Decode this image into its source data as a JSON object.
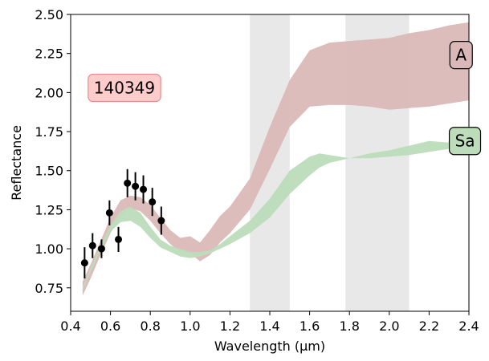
{
  "chart_data": {
    "type": "scatter",
    "title": "",
    "xlabel": "Wavelength (µm)",
    "ylabel": "Reflectance",
    "xlim": [
      0.4,
      2.4
    ],
    "ylim": [
      0.6,
      2.5
    ],
    "xticks": [
      "0.4",
      "0.6",
      "0.8",
      "1.0",
      "1.2",
      "1.4",
      "1.6",
      "1.8",
      "2.0",
      "2.2",
      "2.4"
    ],
    "yticks": [
      "0.75",
      "1.00",
      "1.25",
      "1.50",
      "1.75",
      "2.00",
      "2.25",
      "2.50"
    ],
    "grid": false,
    "shaded_regions": [
      {
        "x0": 1.3,
        "x1": 1.5,
        "color": "#e8e8e8"
      },
      {
        "x0": 1.78,
        "x1": 2.1,
        "color": "#e8e8e8"
      }
    ],
    "series": [
      {
        "name": "A",
        "kind": "band",
        "color": "#dbb8b8",
        "x": [
          0.46,
          0.5,
          0.55,
          0.6,
          0.65,
          0.7,
          0.75,
          0.8,
          0.85,
          0.9,
          0.95,
          1.0,
          1.05,
          1.1,
          1.15,
          1.2,
          1.3,
          1.4,
          1.5,
          1.6,
          1.7,
          1.8,
          1.9,
          2.0,
          2.1,
          2.2,
          2.3,
          2.4
        ],
        "upper": [
          0.79,
          0.9,
          1.05,
          1.2,
          1.31,
          1.34,
          1.33,
          1.28,
          1.2,
          1.12,
          1.07,
          1.08,
          1.04,
          1.12,
          1.21,
          1.27,
          1.45,
          1.78,
          2.08,
          2.27,
          2.32,
          2.33,
          2.34,
          2.35,
          2.38,
          2.4,
          2.43,
          2.45
        ],
        "lower": [
          0.7,
          0.81,
          0.96,
          1.1,
          1.21,
          1.26,
          1.24,
          1.18,
          1.1,
          1.03,
          0.98,
          0.97,
          0.92,
          0.96,
          1.04,
          1.1,
          1.25,
          1.51,
          1.78,
          1.91,
          1.92,
          1.92,
          1.91,
          1.89,
          1.9,
          1.91,
          1.93,
          1.95
        ]
      },
      {
        "name": "Sa",
        "kind": "band",
        "color": "#bcdcba",
        "x": [
          0.46,
          0.5,
          0.55,
          0.6,
          0.65,
          0.7,
          0.75,
          0.8,
          0.85,
          0.9,
          0.95,
          1.0,
          1.05,
          1.1,
          1.15,
          1.2,
          1.3,
          1.4,
          1.5,
          1.6,
          1.65,
          1.7,
          1.8,
          1.9,
          2.0,
          2.1,
          2.2,
          2.3,
          2.4
        ],
        "upper": [
          0.75,
          0.88,
          1.02,
          1.15,
          1.24,
          1.27,
          1.23,
          1.14,
          1.06,
          1.02,
          1.0,
          0.98,
          0.98,
          0.99,
          1.03,
          1.08,
          1.18,
          1.32,
          1.5,
          1.59,
          1.61,
          1.6,
          1.58,
          1.61,
          1.63,
          1.66,
          1.69,
          1.68,
          1.69
        ],
        "lower": [
          0.73,
          0.85,
          0.99,
          1.11,
          1.17,
          1.18,
          1.14,
          1.07,
          1.01,
          0.98,
          0.95,
          0.94,
          0.95,
          0.97,
          1.0,
          1.03,
          1.1,
          1.2,
          1.35,
          1.47,
          1.52,
          1.55,
          1.58,
          1.58,
          1.59,
          1.6,
          1.62,
          1.64,
          1.66
        ]
      },
      {
        "name": "140349",
        "kind": "points",
        "color": "#000000",
        "x": [
          0.47,
          0.51,
          0.555,
          0.595,
          0.64,
          0.685,
          0.725,
          0.765,
          0.81,
          0.855
        ],
        "y": [
          0.91,
          1.02,
          1.0,
          1.23,
          1.06,
          1.42,
          1.4,
          1.38,
          1.3,
          1.18
        ],
        "err": [
          0.1,
          0.08,
          0.06,
          0.08,
          0.08,
          0.09,
          0.09,
          0.09,
          0.09,
          0.09
        ]
      }
    ],
    "annotations": [
      {
        "text": "140349",
        "x": 0.67,
        "y": 2.03,
        "anchor": "middle",
        "bg": "#ffcccc",
        "border": "#e88c8c"
      },
      {
        "text": "A",
        "x": 2.36,
        "y": 2.24,
        "anchor": "middle",
        "bg": "#dbb8b8",
        "border": "#000000"
      },
      {
        "text": "Sa",
        "x": 2.38,
        "y": 1.69,
        "anchor": "middle",
        "bg": "#bcdcba",
        "border": "#000000"
      }
    ]
  }
}
